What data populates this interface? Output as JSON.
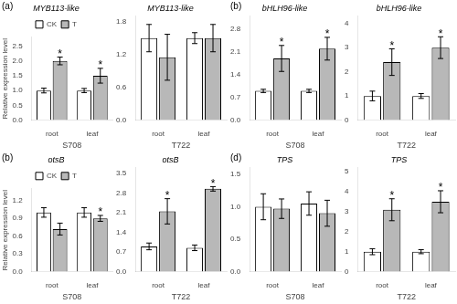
{
  "chart_data": [
    {
      "type": "bar",
      "title": "MYB113-like",
      "xlabel": "S708",
      "ylabel": "Relative expression level",
      "categories": [
        "root",
        "leaf"
      ],
      "series": [
        {
          "name": "CK",
          "color": "#ffffff",
          "values": [
            1.0,
            1.0
          ],
          "errors": [
            0.08,
            0.07
          ]
        },
        {
          "name": "T",
          "color": "#b8b8b8",
          "values": [
            2.0,
            1.5
          ],
          "errors": [
            0.13,
            0.25
          ]
        }
      ],
      "ylim": [
        0,
        2.8
      ],
      "yticks": [
        {
          "value": 0,
          "label": "0.0"
        },
        0.5,
        {
          "value": 1,
          "label": "1.0"
        },
        1.5,
        {
          "value": 2,
          "label": "2.0"
        },
        2.5
      ],
      "annotations": [
        {
          "text": "(a)"
        },
        {
          "text": "*",
          "series": "T",
          "category": "root"
        },
        {
          "text": "*",
          "series": "T",
          "category": "leaf"
        }
      ],
      "legend": "top",
      "grid": false
    },
    {
      "type": "bar",
      "title": "MYB113-like",
      "xlabel": "T722",
      "categories": [
        "root",
        "leaf"
      ],
      "series": [
        {
          "name": "CK",
          "color": "#ffffff",
          "values": [
            1.5,
            1.5
          ],
          "errors": [
            0.25,
            0.1
          ]
        },
        {
          "name": "T",
          "color": "#b8b8b8",
          "values": [
            1.15,
            1.5
          ],
          "errors": [
            0.42,
            0.25
          ]
        }
      ],
      "ylim": [
        0,
        1.9
      ],
      "yticks": [
        {
          "value": 0,
          "label": "0.0"
        },
        0.6,
        1.2,
        1.8
      ],
      "legend": false,
      "grid": false
    },
    {
      "type": "bar",
      "title": "bHLH96-like",
      "xlabel": "S708",
      "categories": [
        "root",
        "leaf"
      ],
      "series": [
        {
          "name": "CK",
          "color": "#ffffff",
          "values": [
            0.9,
            0.9
          ],
          "errors": [
            0.05,
            0.05
          ]
        },
        {
          "name": "T",
          "color": "#b8b8b8",
          "values": [
            1.9,
            2.2
          ],
          "errors": [
            0.4,
            0.35
          ]
        }
      ],
      "ylim": [
        0,
        3.2
      ],
      "yticks": [
        {
          "value": 0,
          "label": "0.0"
        },
        0.7,
        1.4,
        2.1,
        2.8
      ],
      "annotations": [
        {
          "text": "(b)"
        },
        {
          "text": "*",
          "series": "T",
          "category": "root"
        },
        {
          "text": "*",
          "series": "T",
          "category": "leaf"
        }
      ],
      "legend": false,
      "grid": false
    },
    {
      "type": "bar",
      "title": "bHLH96-like",
      "xlabel": "T722",
      "categories": [
        "root",
        "leaf"
      ],
      "series": [
        {
          "name": "CK",
          "color": "#ffffff",
          "values": [
            1.0,
            1.0
          ],
          "errors": [
            0.2,
            0.1
          ]
        },
        {
          "name": "T",
          "color": "#b8b8b8",
          "values": [
            2.4,
            3.0
          ],
          "errors": [
            0.55,
            0.45
          ]
        }
      ],
      "ylim": [
        0,
        4.3
      ],
      "yticks": [
        0,
        1,
        2,
        3,
        4
      ],
      "annotations": [
        {
          "text": "*",
          "series": "T",
          "category": "root"
        },
        {
          "text": "*",
          "series": "T",
          "category": "leaf"
        }
      ],
      "legend": false,
      "grid": false
    },
    {
      "type": "bar",
      "title": "otsB",
      "xlabel": "S708",
      "ylabel": "Relative expression level",
      "categories": [
        "root",
        "leaf"
      ],
      "series": [
        {
          "name": "CK",
          "color": "#ffffff",
          "values": [
            1.0,
            1.0
          ],
          "errors": [
            0.08,
            0.08
          ]
        },
        {
          "name": "T",
          "color": "#b8b8b8",
          "values": [
            0.72,
            0.9
          ],
          "errors": [
            0.1,
            0.05
          ]
        }
      ],
      "ylim": [
        0,
        1.4
      ],
      "yticks": [
        {
          "value": 0,
          "label": "0.0"
        },
        0.3,
        0.6,
        0.9,
        1.2
      ],
      "annotations": [
        {
          "text": "(b)"
        },
        {
          "text": "*",
          "series": "T",
          "category": "leaf"
        }
      ],
      "legend": "top",
      "grid": false
    },
    {
      "type": "bar",
      "title": "otsB",
      "xlabel": "T722",
      "categories": [
        "root",
        "leaf"
      ],
      "series": [
        {
          "name": "CK",
          "color": "#ffffff",
          "values": [
            0.9,
            0.85
          ],
          "errors": [
            0.12,
            0.1
          ]
        },
        {
          "name": "T",
          "color": "#b8b8b8",
          "values": [
            2.15,
            2.95
          ],
          "errors": [
            0.45,
            0.08
          ]
        }
      ],
      "ylim": [
        0,
        3.7
      ],
      "yticks": [
        {
          "value": 0,
          "label": "0.0"
        },
        0.7,
        1.4,
        2.1,
        2.8,
        3.5
      ],
      "annotations": [
        {
          "text": "*",
          "series": "T",
          "category": "root"
        },
        {
          "text": "*",
          "series": "T",
          "category": "leaf"
        }
      ],
      "legend": false,
      "grid": false
    },
    {
      "type": "bar",
      "title": "TPS",
      "xlabel": "S708",
      "categories": [
        "root",
        "leaf"
      ],
      "series": [
        {
          "name": "CK",
          "color": "#ffffff",
          "values": [
            1.0,
            1.05
          ],
          "errors": [
            0.2,
            0.18
          ]
        },
        {
          "name": "T",
          "color": "#b8b8b8",
          "values": [
            0.97,
            0.9
          ],
          "errors": [
            0.15,
            0.2
          ]
        }
      ],
      "ylim": [
        0,
        1.6
      ],
      "yticks": [
        {
          "value": 0,
          "label": "0.0"
        },
        0.5,
        {
          "value": 1,
          "label": "1.0"
        },
        1.5
      ],
      "annotations": [
        {
          "text": "(d)"
        }
      ],
      "legend": false,
      "grid": false
    },
    {
      "type": "bar",
      "title": "TPS",
      "xlabel": "T722",
      "categories": [
        "root",
        "leaf"
      ],
      "series": [
        {
          "name": "CK",
          "color": "#ffffff",
          "values": [
            1.0,
            1.0
          ],
          "errors": [
            0.15,
            0.1
          ]
        },
        {
          "name": "T",
          "color": "#b8b8b8",
          "values": [
            3.1,
            3.5
          ],
          "errors": [
            0.55,
            0.55
          ]
        }
      ],
      "ylim": [
        0,
        5.2
      ],
      "yticks": [
        0,
        1,
        2,
        3,
        4,
        5
      ],
      "annotations": [
        {
          "text": "*",
          "series": "T",
          "category": "root"
        },
        {
          "text": "*",
          "series": "T",
          "category": "leaf"
        }
      ],
      "legend": false,
      "grid": false
    }
  ]
}
